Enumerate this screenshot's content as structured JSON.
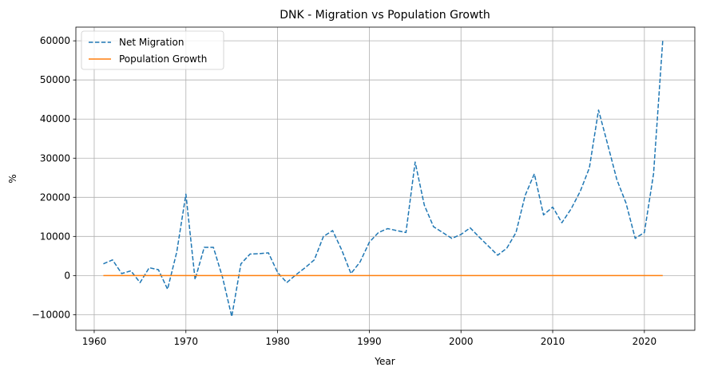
{
  "chart_data": {
    "type": "line",
    "title": "DNK - Migration vs Population Growth",
    "xlabel": "Year",
    "ylabel": "%",
    "xlim": [
      1958,
      2025.5
    ],
    "ylim": [
      -14000,
      63500
    ],
    "xticks": [
      1960,
      1970,
      1980,
      1990,
      2000,
      2010,
      2020
    ],
    "yticks": [
      -10000,
      0,
      10000,
      20000,
      30000,
      40000,
      50000,
      60000
    ],
    "grid": true,
    "legend": "top-left",
    "series": [
      {
        "name": "Net Migration",
        "color": "#1f77b4",
        "style": "dashed",
        "x": [
          1961,
          1962,
          1963,
          1964,
          1965,
          1966,
          1967,
          1968,
          1969,
          1970,
          1971,
          1972,
          1973,
          1974,
          1975,
          1976,
          1977,
          1978,
          1979,
          1980,
          1981,
          1982,
          1983,
          1984,
          1985,
          1986,
          1987,
          1988,
          1989,
          1990,
          1991,
          1992,
          1993,
          1994,
          1995,
          1996,
          1997,
          1998,
          1999,
          2000,
          2001,
          2002,
          2003,
          2004,
          2005,
          2006,
          2007,
          2008,
          2009,
          2010,
          2011,
          2012,
          2013,
          2014,
          2015,
          2016,
          2017,
          2018,
          2019,
          2020,
          2021,
          2022
        ],
        "values": [
          3000,
          4000,
          500,
          1200,
          -1800,
          2000,
          1500,
          -3500,
          6000,
          20800,
          -1000,
          7200,
          7200,
          -500,
          -10500,
          3000,
          5500,
          5600,
          5800,
          800,
          -1800,
          200,
          2000,
          4000,
          10000,
          11500,
          6500,
          500,
          3500,
          8500,
          11000,
          12000,
          11500,
          11000,
          29000,
          18000,
          12500,
          11000,
          9500,
          10500,
          12200,
          9800,
          7500,
          5200,
          7000,
          11000,
          20500,
          26000,
          15500,
          17500,
          13500,
          17000,
          21500,
          27500,
          42300,
          33500,
          24500,
          18500,
          9500,
          11000,
          26000,
          60000
        ]
      },
      {
        "name": "Population Growth",
        "color": "#ff7f0e",
        "style": "solid",
        "x": [
          1961,
          2022
        ],
        "values": [
          0,
          0
        ]
      }
    ]
  }
}
